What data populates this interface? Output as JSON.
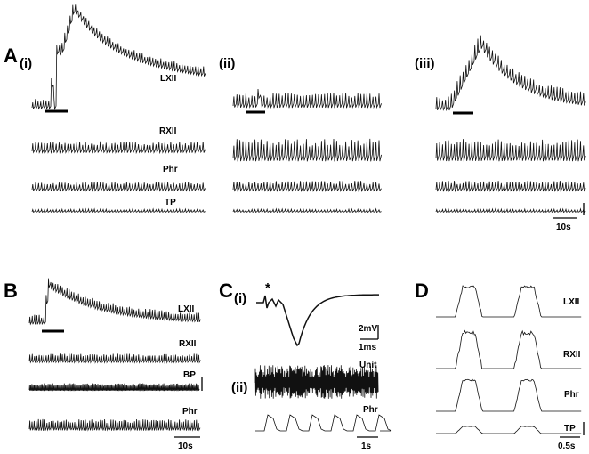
{
  "panels": {
    "A": {
      "letter": "A",
      "subpanels": [
        "(i)",
        "(ii)",
        "(iii)"
      ],
      "traces": [
        "LXII",
        "RXII",
        "Phr",
        "TP"
      ],
      "scale": "10s"
    },
    "B": {
      "letter": "B",
      "traces": [
        "LXII",
        "RXII",
        "BP",
        "Phr"
      ],
      "scale": "10s"
    },
    "C": {
      "letter": "C",
      "subpanels": [
        "(i)",
        "(ii)"
      ],
      "marker": "*",
      "scale_top_v": "2mV",
      "scale_top_t": "1ms",
      "traces": [
        "Unit",
        "Phr"
      ],
      "scale_bottom": "1s"
    },
    "D": {
      "letter": "D",
      "traces": [
        "LXII",
        "RXII",
        "Phr",
        "TP"
      ],
      "scale": "0.5s"
    }
  }
}
